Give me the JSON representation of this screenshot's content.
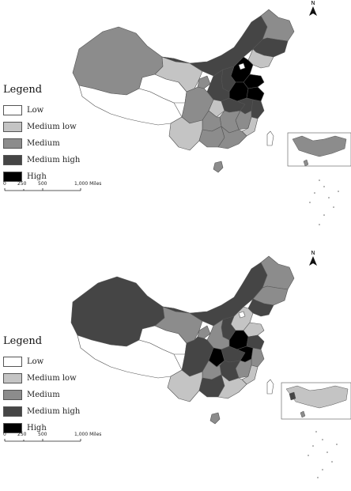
{
  "legend": {
    "title": "Legend",
    "items": [
      {
        "label": "Low",
        "color": "#ffffff"
      },
      {
        "label": "Medium low",
        "color": "#c4c4c4"
      },
      {
        "label": "Medium",
        "color": "#8c8c8c"
      },
      {
        "label": "Medium high",
        "color": "#454545"
      },
      {
        "label": "High",
        "color": "#000000"
      }
    ]
  },
  "scale_bar": {
    "ticks": [
      "0",
      "250",
      "500",
      "1,000 Miles"
    ]
  },
  "north_arrow": {
    "label": "N"
  },
  "maps": [
    {
      "name": "top",
      "regions": {
        "xinjiang": "#8c8c8c",
        "tibet": "#ffffff",
        "qinghai": "#ffffff",
        "gansu": "#c4c4c4",
        "inner-mongolia": "#454545",
        "heilongjiang": "#8c8c8c",
        "jilin": "#454545",
        "liaoning": "#c4c4c4",
        "hebei": "#000000",
        "beijing": "#ffffff",
        "shandong": "#000000",
        "jiangsu": "#000000",
        "henan": "#000000",
        "shanxi": "#454545",
        "shaanxi": "#454545",
        "ningxia": "#8c8c8c",
        "sichuan": "#8c8c8c",
        "chongqing": "#c4c4c4",
        "hubei": "#454545",
        "anhui": "#454545",
        "zhejiang": "#454545",
        "jiangxi": "#8c8c8c",
        "hunan": "#8c8c8c",
        "fujian": "#c4c4c4",
        "guangdong": "#8c8c8c",
        "guangxi": "#8c8c8c",
        "guizhou": "#8c8c8c",
        "yunnan": "#c4c4c4",
        "hainan": "#8c8c8c",
        "taiwan": "#ffffff"
      }
    },
    {
      "name": "bottom",
      "regions": {
        "xinjiang": "#454545",
        "tibet": "#ffffff",
        "qinghai": "#ffffff",
        "gansu": "#8c8c8c",
        "inner-mongolia": "#454545",
        "heilongjiang": "#8c8c8c",
        "jilin": "#8c8c8c",
        "liaoning": "#454545",
        "hebei": "#c4c4c4",
        "beijing": "#ffffff",
        "shandong": "#c4c4c4",
        "jiangsu": "#454545",
        "henan": "#000000",
        "shanxi": "#454545",
        "shaanxi": "#8c8c8c",
        "ningxia": "#8c8c8c",
        "sichuan": "#454545",
        "chongqing": "#000000",
        "hubei": "#454545",
        "anhui": "#000000",
        "zhejiang": "#8c8c8c",
        "jiangxi": "#8c8c8c",
        "hunan": "#454545",
        "fujian": "#c4c4c4",
        "guangdong": "#c4c4c4",
        "guangxi": "#454545",
        "guizhou": "#8c8c8c",
        "yunnan": "#c4c4c4",
        "hainan": "#8c8c8c",
        "taiwan": "#ffffff"
      }
    }
  ]
}
